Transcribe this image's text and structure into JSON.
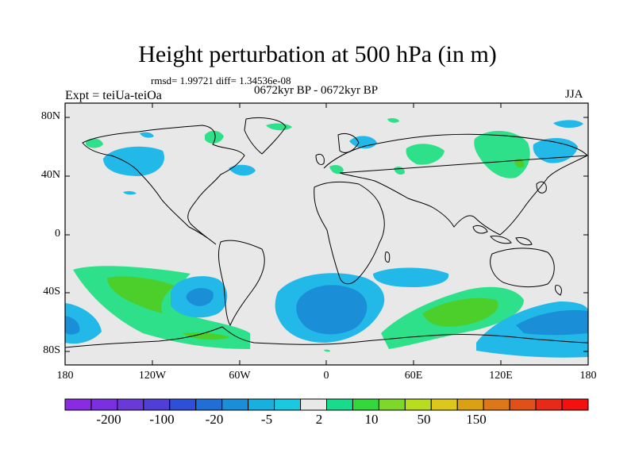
{
  "title": "Height perturbation at 500 hPa (in m)",
  "stats_text": "rmsd= 1.99721 diff= 1.34536e-08",
  "subtitle": "0672kyr BP - 0672kyr BP",
  "left_label": "Expt = teiUa-teiOa",
  "right_label": "JJA",
  "y_ticks": [
    "80N",
    "40N",
    "0",
    "40S",
    "80S"
  ],
  "x_ticks": [
    "180",
    "120W",
    "60W",
    "0",
    "60E",
    "120E",
    "180"
  ],
  "colorbar": {
    "colors": [
      "#8a2be2",
      "#7a2fe0",
      "#6a3ad8",
      "#4f3fd6",
      "#2e4fd8",
      "#1f6fd6",
      "#1a8fd8",
      "#18b0dc",
      "#1ac8e0",
      "#e8e8e8",
      "#18dc8c",
      "#34d83a",
      "#7ed82a",
      "#b8dc1e",
      "#dcc81c",
      "#dca014",
      "#dc7818",
      "#e05018",
      "#e82818",
      "#f41010"
    ],
    "labels": [
      "-200",
      "-100",
      "-20",
      "-5",
      "2",
      "10",
      "50",
      "150"
    ]
  },
  "map_colors": {
    "background": "#e8e8e8",
    "light_blue": "#22b8e8",
    "blue": "#1a8fd8",
    "green_light": "#2ee08a",
    "green": "#4ccf2a"
  }
}
